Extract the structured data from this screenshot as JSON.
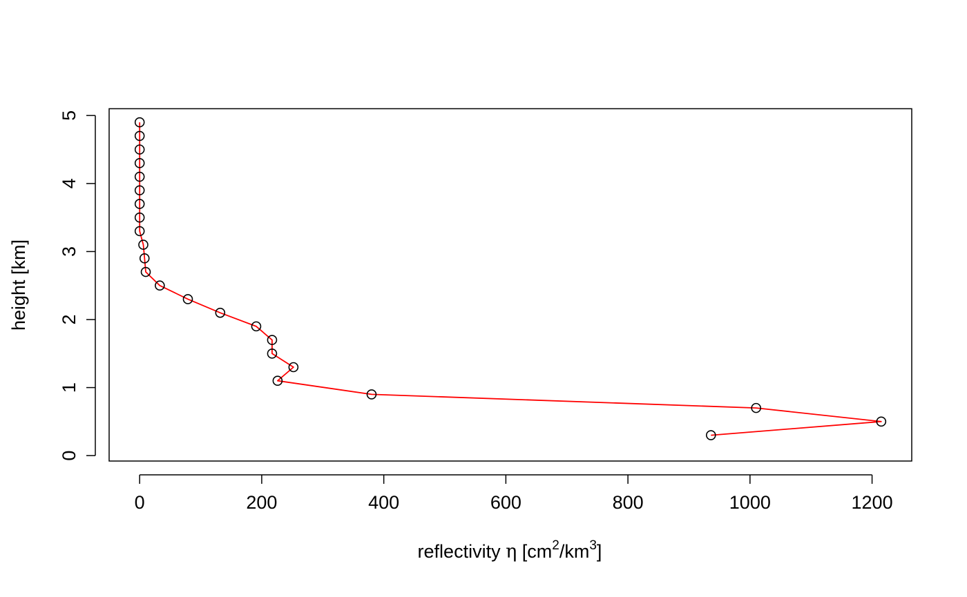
{
  "chart_data": {
    "type": "line",
    "title": "",
    "xlabel": {
      "prefix": "reflectivity ",
      "symbol": "η",
      "mid1": " [cm",
      "sup1": "2",
      "mid2": "/km",
      "sup2": "3",
      "suffix": "]"
    },
    "ylabel": "height [km]",
    "xlim": [
      -50,
      1265
    ],
    "ylim": [
      -0.08,
      5.1
    ],
    "xticks": [
      0,
      200,
      400,
      600,
      800,
      1000,
      1200
    ],
    "xtick_labels": [
      "0",
      "200",
      "400",
      "600",
      "800",
      "1000",
      "1200"
    ],
    "yticks": [
      0,
      1,
      2,
      3,
      4,
      5
    ],
    "ytick_labels": [
      "0",
      "1",
      "2",
      "3",
      "4",
      "5"
    ],
    "grid": false,
    "line_color": "#ff0000",
    "marker_color": "#000000",
    "marker": "open-circle",
    "series": [
      {
        "x": [
          936,
          1215,
          1010,
          380,
          226,
          252,
          217,
          217,
          191,
          132,
          79,
          33,
          10,
          8,
          6,
          0,
          0,
          0,
          0,
          0,
          0,
          0,
          0,
          0
        ],
        "y": [
          0.3,
          0.5,
          0.7,
          0.9,
          1.1,
          1.3,
          1.5,
          1.7,
          1.9,
          2.1,
          2.3,
          2.5,
          2.7,
          2.9,
          3.1,
          3.3,
          3.5,
          3.7,
          3.9,
          4.1,
          4.3,
          4.5,
          4.7,
          4.9
        ]
      }
    ]
  }
}
